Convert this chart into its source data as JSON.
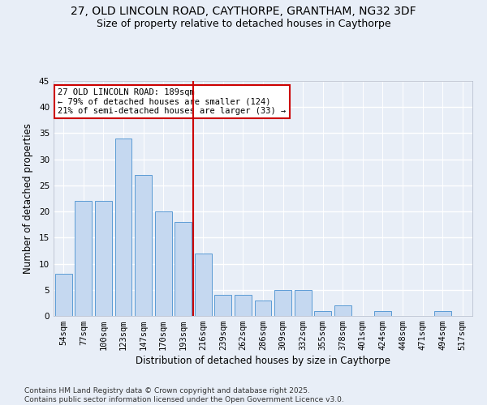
{
  "title_line1": "27, OLD LINCOLN ROAD, CAYTHORPE, GRANTHAM, NG32 3DF",
  "title_line2": "Size of property relative to detached houses in Caythorpe",
  "xlabel": "Distribution of detached houses by size in Caythorpe",
  "ylabel": "Number of detached properties",
  "categories": [
    "54sqm",
    "77sqm",
    "100sqm",
    "123sqm",
    "147sqm",
    "170sqm",
    "193sqm",
    "216sqm",
    "239sqm",
    "262sqm",
    "286sqm",
    "309sqm",
    "332sqm",
    "355sqm",
    "378sqm",
    "401sqm",
    "424sqm",
    "448sqm",
    "471sqm",
    "494sqm",
    "517sqm"
  ],
  "values": [
    8,
    22,
    22,
    34,
    27,
    20,
    18,
    12,
    4,
    4,
    3,
    5,
    5,
    1,
    2,
    0,
    1,
    0,
    0,
    1,
    0
  ],
  "bar_color": "#c5d8f0",
  "bar_edge_color": "#5b9bd5",
  "vline_index": 6,
  "vline_color": "#cc0000",
  "annotation_text": "27 OLD LINCOLN ROAD: 189sqm\n← 79% of detached houses are smaller (124)\n21% of semi-detached houses are larger (33) →",
  "annotation_box_color": "#ffffff",
  "annotation_box_edge": "#cc0000",
  "ylim": [
    0,
    45
  ],
  "yticks": [
    0,
    5,
    10,
    15,
    20,
    25,
    30,
    35,
    40,
    45
  ],
  "background_color": "#e8eef7",
  "grid_color": "#ffffff",
  "footnote": "Contains HM Land Registry data © Crown copyright and database right 2025.\nContains public sector information licensed under the Open Government Licence v3.0.",
  "title_fontsize": 10,
  "subtitle_fontsize": 9,
  "axis_label_fontsize": 8.5,
  "tick_fontsize": 7.5,
  "annotation_fontsize": 7.5,
  "footnote_fontsize": 6.5
}
